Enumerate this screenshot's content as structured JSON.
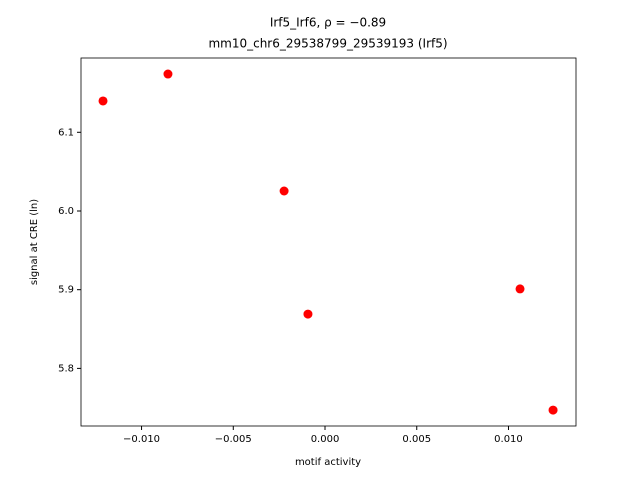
{
  "chart_data": {
    "type": "scatter",
    "title": "Irf5_Irf6, ρ = −0.89",
    "subtitle": "mm10_chr6_29538799_29539193 (Irf5)",
    "x_label": "motif activity",
    "y_label": "signal at CRE (ln)",
    "color": "#ff0000",
    "x": [
      -0.0121,
      -0.00856,
      -0.00223,
      -0.00093,
      0.01063,
      0.01243
    ],
    "values": [
      6.1398,
      6.174,
      6.0254,
      5.869,
      5.901,
      5.747
    ],
    "xlim": [
      -0.0133,
      0.01368
    ],
    "ylim": [
      5.7268,
      6.1944
    ],
    "xticks": [
      {
        "value": -0.01,
        "label": "−0.010"
      },
      {
        "value": -0.005,
        "label": "−0.005"
      },
      {
        "value": 0,
        "label": "0.000"
      },
      {
        "value": 0.005,
        "label": "0.005"
      },
      {
        "value": 0.01,
        "label": "0.010"
      }
    ],
    "yticks": [
      5.8,
      5.9,
      {
        "value": 6,
        "label": "6.0"
      },
      6.1
    ]
  }
}
